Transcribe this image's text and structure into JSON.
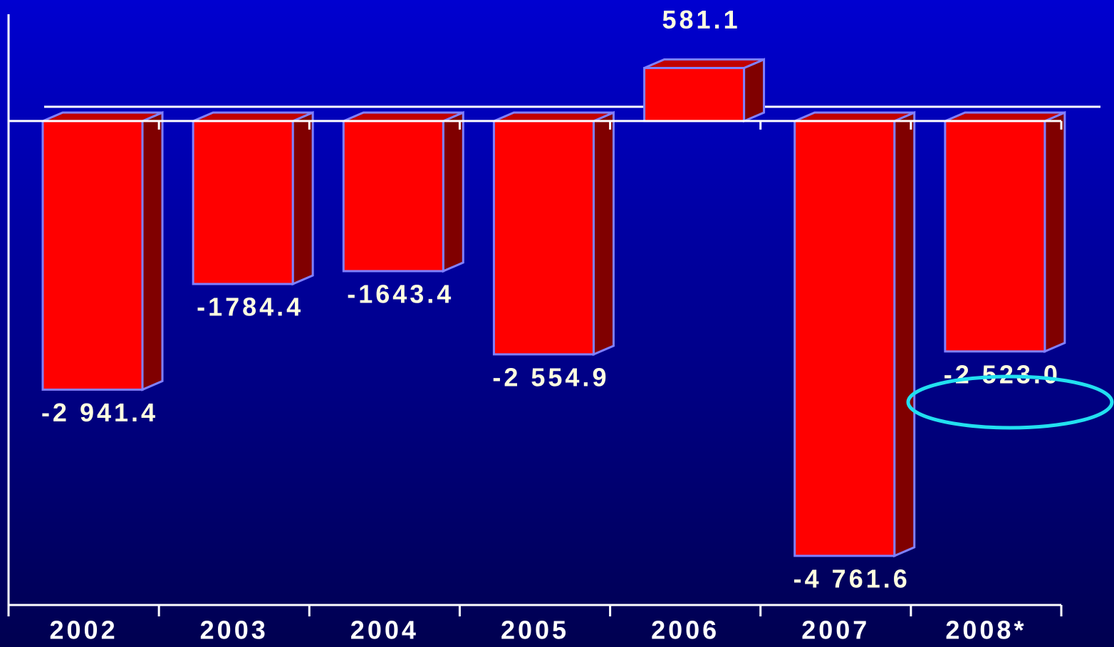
{
  "chart_data": {
    "type": "bar",
    "categories": [
      "2002",
      "2003",
      "2004",
      "2005",
      "2006",
      "2007",
      "2008*"
    ],
    "values": [
      -2941.4,
      -1784.4,
      -1643.4,
      -2554.9,
      581.1,
      -4761.6,
      -2523.0
    ],
    "value_labels": [
      "-2 941.4",
      "-1784.4",
      "-1643.4",
      "-2 554.9",
      "581.1",
      "-4 761.6",
      "-2 523.0"
    ],
    "color": "#ff0000",
    "ylim": [
      -5300,
      1170
    ]
  }
}
